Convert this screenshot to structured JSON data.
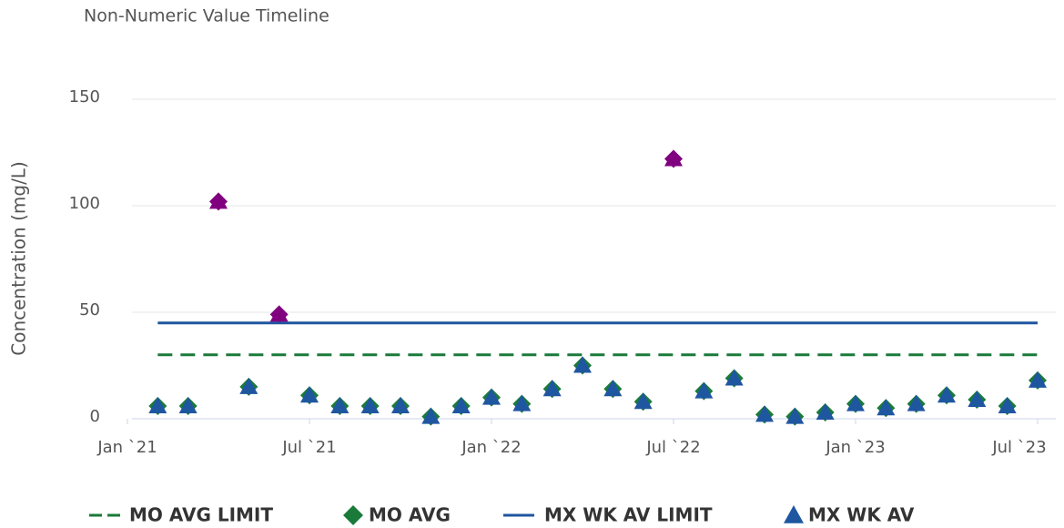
{
  "chart_data": {
    "type": "scatter",
    "title": "Non-Numeric Value Timeline",
    "y_label": "Concentration (mg/L)",
    "x": [
      "2021-02",
      "2021-03",
      "2021-04",
      "2021-05",
      "2021-06",
      "2021-07",
      "2021-08",
      "2021-09",
      "2021-10",
      "2021-11",
      "2021-12",
      "2022-01",
      "2022-02",
      "2022-03",
      "2022-04",
      "2022-05",
      "2022-06",
      "2022-07",
      "2022-08",
      "2022-09",
      "2022-10",
      "2022-11",
      "2022-12",
      "2023-01",
      "2023-02",
      "2023-03",
      "2023-04",
      "2023-05",
      "2023-06",
      "2023-07"
    ],
    "series": [
      {
        "name": "MO AVG LIMIT",
        "color": "#1a7a3a",
        "value": 30,
        "dashed": true
      },
      {
        "name": "MO AVG",
        "color": "#1a7a3a",
        "marker": "diamond",
        "values": [
          6,
          6,
          102,
          15,
          49,
          11,
          6,
          6,
          6,
          1,
          6,
          10,
          7,
          14,
          25,
          14,
          8,
          122,
          13,
          19,
          2,
          1,
          3,
          7,
          5,
          7,
          11,
          9,
          6,
          18
        ]
      },
      {
        "name": "MX WK AV LIMIT",
        "color": "#1f56a0",
        "value": 45,
        "dashed": false
      },
      {
        "name": "MX WK AV",
        "color": "#1f56a0",
        "marker": "triangle",
        "values": [
          6,
          6,
          102,
          15,
          49,
          11,
          6,
          6,
          6,
          1,
          6,
          10,
          7,
          14,
          25,
          14,
          8,
          122,
          13,
          19,
          2,
          1,
          3,
          7,
          5,
          7,
          11,
          9,
          6,
          18
        ]
      }
    ],
    "exceedance_color": "#800080",
    "xlim": [
      "2021-01",
      "2023-07"
    ],
    "xticks": [
      {
        "value": "2021-01",
        "label": "Jan `21"
      },
      {
        "value": "2021-07",
        "label": "Jul `21"
      },
      {
        "value": "2022-01",
        "label": "Jan `22"
      },
      {
        "value": "2022-07",
        "label": "Jul `22"
      },
      {
        "value": "2023-01",
        "label": "Jan `23"
      },
      {
        "value": "2023-07",
        "label": "Jul `23"
      }
    ],
    "ylim": [
      0,
      150
    ],
    "yticks": [
      0,
      50,
      100,
      150
    ],
    "grid": true
  }
}
